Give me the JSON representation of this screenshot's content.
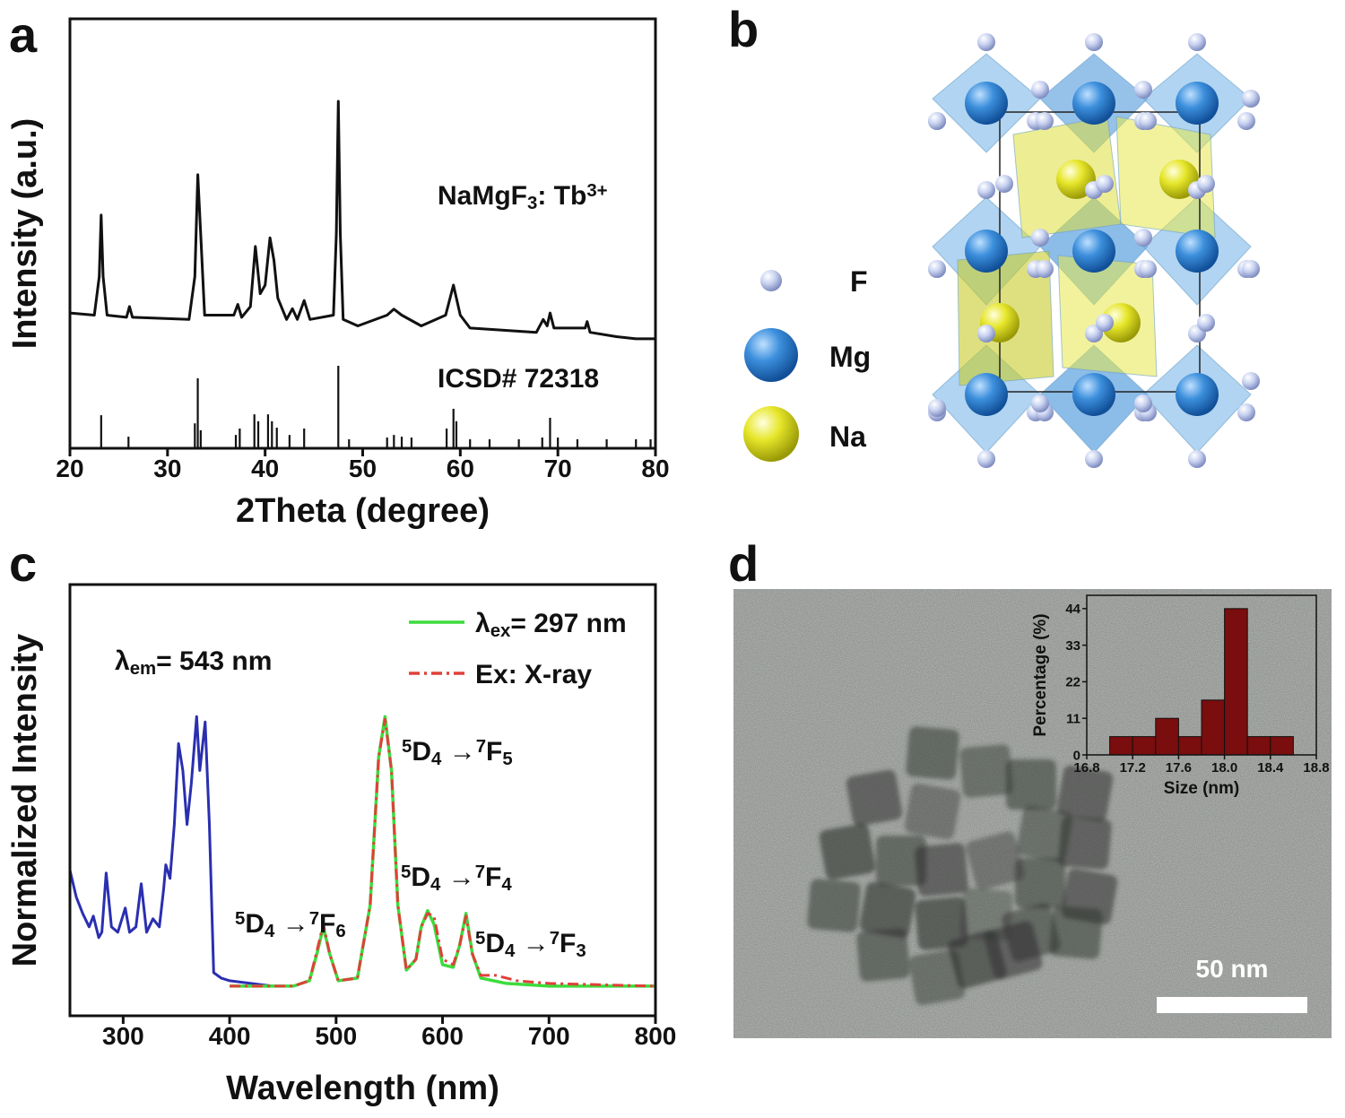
{
  "panels": [
    "a",
    "b",
    "c",
    "d"
  ],
  "structure": {
    "legend": [
      "F",
      "Mg",
      "Na"
    ]
  },
  "tem": {
    "scale_bar": "50 nm"
  },
  "chart_data": [
    {
      "type": "line",
      "x_label": "2Theta (degree)",
      "y_label": "Intensity (a.u.)",
      "xlim": [
        20,
        80
      ],
      "xticks": [
        20,
        30,
        40,
        50,
        60,
        70,
        80
      ],
      "ylim": [
        0,
        100
      ],
      "annotations": [
        [
          {
            "text": "NaMgF"
          },
          {
            "sub": "3"
          },
          {
            "text": ": Tb"
          },
          {
            "sup": "3+"
          }
        ],
        "ICSD# 72318"
      ],
      "series": [
        {
          "style": "line",
          "color": "#111111",
          "x": [
            20,
            22.5,
            23.0,
            23.2,
            23.4,
            23.8,
            25.8,
            26.1,
            26.4,
            32.2,
            32.8,
            33.1,
            33.4,
            33.8,
            36.8,
            37.2,
            37.6,
            38.5,
            39.0,
            39.5,
            40.0,
            40.5,
            40.9,
            41.3,
            42.2,
            42.8,
            43.3,
            44.0,
            44.6,
            47.0,
            47.3,
            47.5,
            47.7,
            48.0,
            49.5,
            52.5,
            53.2,
            54.0,
            56,
            58.5,
            59.3,
            60.0,
            61,
            67.8,
            68.5,
            68.9,
            69.2,
            69.6,
            72.8,
            73.0,
            73.3,
            76,
            78,
            80
          ],
          "values": [
            31.5,
            31,
            40,
            54.3,
            40,
            31,
            30.5,
            33,
            30.5,
            30,
            40,
            63.7,
            50,
            31,
            31,
            33.5,
            30.5,
            33,
            47,
            36,
            38,
            49,
            43.8,
            35,
            30,
            32.5,
            30,
            34.4,
            30,
            31,
            50,
            80.8,
            50,
            30,
            28.5,
            31,
            32.4,
            31,
            28.5,
            31,
            38,
            31,
            28,
            27,
            30,
            28.5,
            31.5,
            28,
            28,
            29.5,
            27,
            26,
            25.5,
            25.5
          ]
        },
        {
          "style": "stick",
          "color": "#111111",
          "x": [
            23.2,
            26.0,
            32.8,
            33.1,
            33.4,
            37.0,
            37.4,
            38.9,
            39.3,
            40.3,
            40.7,
            41.2,
            42.5,
            44.0,
            47.5,
            48.6,
            52.5,
            53.2,
            54.0,
            55.0,
            58.6,
            59.3,
            59.6,
            61.0,
            63.0,
            66.0,
            68.4,
            69.2,
            70.0,
            72.0,
            75.0,
            78.0,
            79.5
          ],
          "values": [
            7.7,
            2.7,
            5.8,
            16.3,
            4.2,
            3.1,
            4.6,
            7.9,
            6.3,
            7.9,
            6.3,
            4.8,
            3.1,
            4.6,
            19.2,
            2.1,
            2.5,
            3.1,
            2.7,
            2.5,
            4.6,
            9.2,
            6.3,
            2.1,
            2.1,
            2.1,
            2.5,
            7.1,
            2.5,
            2.1,
            2.1,
            2.1,
            2.1
          ]
        }
      ]
    },
    {
      "type": "line",
      "x_label": "Wavelength (nm)",
      "y_label": "Normalized Intensity",
      "xlim": [
        250,
        800
      ],
      "xticks": [
        300,
        400,
        500,
        600,
        700,
        800
      ],
      "ylim": [
        -0.11,
        1.49
      ],
      "legend": "upper right",
      "annotations": [
        [
          {
            "text": "λ"
          },
          {
            "sub": "em"
          },
          {
            "text": "= 543 nm"
          }
        ],
        [
          {
            "sup": "5"
          },
          {
            "text": "D"
          },
          {
            "sub": "4"
          },
          {
            "text": " →"
          },
          {
            "sup": "7"
          },
          {
            "text": "F"
          },
          {
            "sub": "6"
          }
        ],
        [
          {
            "sup": "5"
          },
          {
            "text": "D"
          },
          {
            "sub": "4"
          },
          {
            "text": " →"
          },
          {
            "sup": "7"
          },
          {
            "text": "F"
          },
          {
            "sub": "5"
          }
        ],
        [
          {
            "sup": "5"
          },
          {
            "text": "D"
          },
          {
            "sub": "4"
          },
          {
            "text": " →"
          },
          {
            "sup": "7"
          },
          {
            "text": "F"
          },
          {
            "sub": "4"
          }
        ],
        [
          {
            "sup": "5"
          },
          {
            "text": "D"
          },
          {
            "sub": "4"
          },
          {
            "text": " →"
          },
          {
            "sup": "7"
          },
          {
            "text": "F"
          },
          {
            "sub": "3"
          }
        ]
      ],
      "series": [
        {
          "style": "line",
          "color": "#2a2fb0",
          "x": [
            250,
            256,
            262,
            268,
            272,
            277,
            280,
            284,
            289,
            295,
            302,
            306,
            312,
            317,
            322,
            328,
            334,
            338,
            340,
            344,
            348,
            352,
            356,
            360,
            364,
            369,
            372,
            377,
            381,
            385,
            392,
            400,
            420,
            440
          ],
          "values": [
            0.43,
            0.33,
            0.27,
            0.22,
            0.26,
            0.18,
            0.2,
            0.42,
            0.22,
            0.2,
            0.29,
            0.2,
            0.22,
            0.38,
            0.2,
            0.25,
            0.22,
            0.36,
            0.45,
            0.4,
            0.6,
            0.9,
            0.8,
            0.6,
            0.75,
            1.0,
            0.8,
            0.98,
            0.6,
            0.05,
            0.03,
            0.02,
            0.01,
            0.0
          ]
        },
        {
          "style": "line",
          "color": "#3cdc3c",
          "name": [
            {
              "text": "λ"
            },
            {
              "sub": "ex"
            },
            {
              "text": "= 297 nm"
            }
          ],
          "x": [
            400,
            460,
            475,
            482,
            488,
            494,
            502,
            520,
            532,
            540,
            546,
            552,
            558,
            566,
            575,
            580,
            586,
            592,
            600,
            610,
            616,
            622,
            628,
            636,
            660,
            700,
            800
          ],
          "values": [
            0,
            0,
            0.02,
            0.12,
            0.22,
            0.12,
            0.02,
            0.03,
            0.3,
            0.85,
            1.0,
            0.8,
            0.3,
            0.06,
            0.1,
            0.22,
            0.28,
            0.23,
            0.08,
            0.07,
            0.15,
            0.27,
            0.12,
            0.03,
            0.01,
            0.0,
            0.0
          ]
        },
        {
          "style": "line",
          "dash": "dashdot",
          "color": "#e0403a",
          "name": "Ex: X-ray",
          "x": [
            400,
            460,
            475,
            482,
            488,
            494,
            502,
            520,
            532,
            540,
            546,
            552,
            558,
            566,
            575,
            580,
            586,
            592,
            600,
            610,
            616,
            622,
            628,
            636,
            650,
            670,
            700,
            800
          ],
          "values": [
            0,
            0,
            0.02,
            0.13,
            0.23,
            0.12,
            0.02,
            0.03,
            0.3,
            0.85,
            0.99,
            0.8,
            0.3,
            0.06,
            0.1,
            0.22,
            0.27,
            0.26,
            0.1,
            0.08,
            0.15,
            0.26,
            0.12,
            0.04,
            0.04,
            0.02,
            0.01,
            0.0
          ]
        }
      ]
    },
    {
      "type": "histogram",
      "x_label": "Size (nm)",
      "y_label": "Percentage (%)",
      "color": "#7a0d0d",
      "bins": [
        17.0,
        17.2,
        17.4,
        17.6,
        17.8,
        18.0,
        18.2,
        18.4,
        18.6
      ],
      "values": [
        5.5,
        5.5,
        11,
        5.5,
        16.5,
        44,
        5.5,
        5.5
      ],
      "xlim": [
        16.8,
        18.8
      ],
      "xticks": [
        16.8,
        17.2,
        17.6,
        {
          "value": 18,
          "label": "18.0"
        },
        18.4,
        18.8
      ],
      "ylim": [
        0,
        48
      ],
      "yticks": [
        0,
        11,
        22,
        33,
        44
      ]
    }
  ]
}
